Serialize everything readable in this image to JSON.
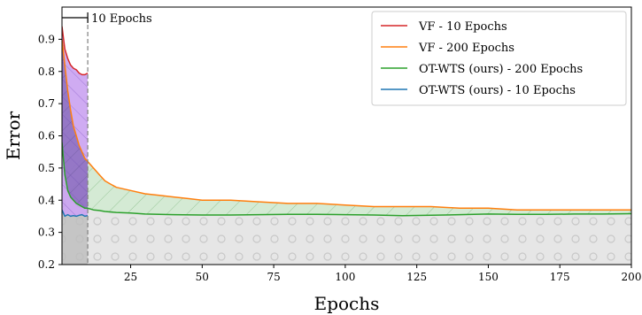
{
  "chart_data": {
    "type": "line",
    "xlabel": "Epochs",
    "ylabel": "Error",
    "xlim": [
      1,
      200
    ],
    "ylim": [
      0.2,
      1.0
    ],
    "x_ticks": [
      25,
      50,
      75,
      100,
      125,
      150,
      175,
      200
    ],
    "y_ticks": [
      0.2,
      0.3,
      0.4,
      0.5,
      0.6,
      0.7,
      0.8,
      0.9
    ],
    "legend_position": "top-right",
    "grid": false,
    "annotation": {
      "text": "10 Epochs",
      "x": 10
    },
    "baseline": 0.2,
    "series": [
      {
        "name": "VF - 10 Epochs",
        "color": "#d62728",
        "x": [
          1,
          2,
          3,
          4,
          5,
          6,
          7,
          8,
          9,
          10
        ],
        "y": [
          0.94,
          0.87,
          0.84,
          0.82,
          0.81,
          0.805,
          0.795,
          0.79,
          0.79,
          0.795
        ]
      },
      {
        "name": "VF - 200 Epochs",
        "color": "#ff7f0e",
        "x": [
          1,
          2,
          3,
          4,
          5,
          6,
          7,
          8,
          9,
          10,
          12,
          14,
          16,
          18,
          20,
          25,
          30,
          35,
          40,
          45,
          50,
          55,
          60,
          70,
          80,
          90,
          100,
          110,
          120,
          130,
          140,
          150,
          160,
          170,
          180,
          190,
          200
        ],
        "y": [
          0.9,
          0.82,
          0.74,
          0.68,
          0.63,
          0.6,
          0.57,
          0.55,
          0.53,
          0.52,
          0.5,
          0.48,
          0.46,
          0.45,
          0.44,
          0.43,
          0.42,
          0.415,
          0.41,
          0.405,
          0.4,
          0.4,
          0.4,
          0.395,
          0.39,
          0.39,
          0.385,
          0.38,
          0.38,
          0.38,
          0.375,
          0.375,
          0.37,
          0.37,
          0.37,
          0.37,
          0.37
        ]
      },
      {
        "name": "OT-WTS (ours) - 200 Epochs",
        "color": "#2ca02c",
        "x": [
          1,
          2,
          3,
          4,
          5,
          6,
          7,
          8,
          9,
          10,
          12,
          14,
          16,
          20,
          25,
          30,
          40,
          50,
          60,
          70,
          80,
          90,
          100,
          110,
          120,
          130,
          140,
          150,
          160,
          170,
          180,
          190,
          200
        ],
        "y": [
          0.58,
          0.48,
          0.43,
          0.41,
          0.4,
          0.39,
          0.385,
          0.38,
          0.375,
          0.375,
          0.37,
          0.368,
          0.365,
          0.362,
          0.36,
          0.357,
          0.355,
          0.354,
          0.354,
          0.355,
          0.356,
          0.356,
          0.355,
          0.354,
          0.352,
          0.353,
          0.355,
          0.357,
          0.356,
          0.356,
          0.357,
          0.357,
          0.358
        ]
      },
      {
        "name": "OT-WTS (ours) - 10 Epochs",
        "color": "#1f77b4",
        "x": [
          1,
          2,
          3,
          4,
          5,
          6,
          7,
          8,
          9,
          10
        ],
        "y": [
          0.37,
          0.35,
          0.355,
          0.35,
          0.352,
          0.35,
          0.353,
          0.355,
          0.35,
          0.352
        ]
      }
    ]
  }
}
